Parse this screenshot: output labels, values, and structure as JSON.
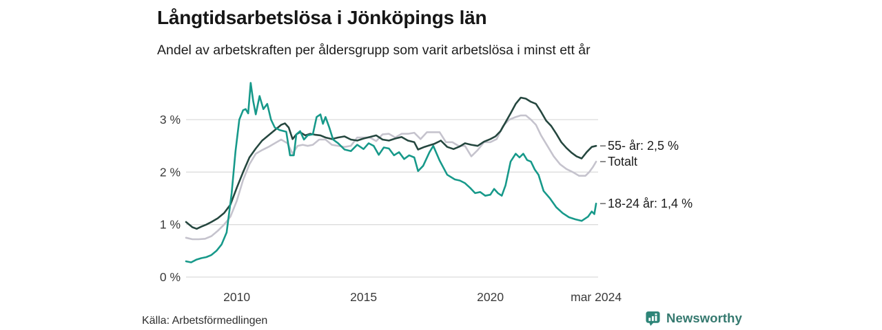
{
  "header": {
    "title": "Långtidsarbetslösa i Jönköpings län",
    "subtitle": "Andel av arbetskraften per åldersgrupp som varit arbetslösa i minst ett år"
  },
  "footer": {
    "source": "Källa: Arbetsförmedlingen",
    "brand": "Newsworthy",
    "brand_color": "#35796f",
    "brand_icon": "bar-chart-badge-icon",
    "brand_icon_color": "#2e8578"
  },
  "chart_data": {
    "type": "line",
    "title": "Långtidsarbetslösa i Jönköpings län",
    "subtitle": "Andel av arbetskraften per åldersgrupp som varit arbetslösa i minst ett år",
    "xlabel": "",
    "ylabel": "",
    "unit": "%",
    "grid": true,
    "legend_position": "end-of-line-labels-right",
    "gridline_color": "#dcdcdc",
    "x_axis": {
      "range": [
        2008.0,
        2024.25
      ],
      "ticks": [
        {
          "t": 2010,
          "label": "2010"
        },
        {
          "t": 2015,
          "label": "2015"
        },
        {
          "t": 2020,
          "label": "2020"
        },
        {
          "t": 2024.17,
          "label": "mar 2024"
        }
      ]
    },
    "y_axis": {
      "range": [
        0,
        3.8
      ],
      "ticks": [
        {
          "v": 0,
          "label": "0 %"
        },
        {
          "v": 1,
          "label": "1 %"
        },
        {
          "v": 2,
          "label": "2 %"
        },
        {
          "v": 3,
          "label": "3 %"
        }
      ]
    },
    "series": [
      {
        "name": "Totalt",
        "end_label": "Totalt",
        "end_value": 2.2,
        "color": "#c5c3cd",
        "x": [
          2008.0,
          2008.25,
          2008.5,
          2008.75,
          2009.0,
          2009.25,
          2009.5,
          2009.75,
          2010.0,
          2010.25,
          2010.5,
          2010.75,
          2011.0,
          2011.25,
          2011.5,
          2011.75,
          2012.0,
          2012.2,
          2012.4,
          2012.6,
          2012.8,
          2013.0,
          2013.25,
          2013.5,
          2013.75,
          2014.0,
          2014.25,
          2014.5,
          2014.75,
          2015.0,
          2015.25,
          2015.5,
          2015.75,
          2016.0,
          2016.25,
          2016.5,
          2016.75,
          2017.0,
          2017.25,
          2017.5,
          2017.75,
          2018.0,
          2018.25,
          2018.5,
          2018.75,
          2019.0,
          2019.25,
          2019.5,
          2019.75,
          2020.0,
          2020.25,
          2020.5,
          2020.75,
          2021.0,
          2021.2,
          2021.4,
          2021.6,
          2021.8,
          2022.0,
          2022.25,
          2022.5,
          2022.75,
          2023.0,
          2023.25,
          2023.5,
          2023.75,
          2023.9,
          2024.05,
          2024.17
        ],
        "values": [
          0.75,
          0.72,
          0.72,
          0.73,
          0.78,
          0.88,
          1.0,
          1.15,
          1.45,
          1.85,
          2.15,
          2.35,
          2.42,
          2.48,
          2.55,
          2.62,
          2.55,
          2.35,
          2.5,
          2.52,
          2.5,
          2.52,
          2.62,
          2.62,
          2.52,
          2.5,
          2.48,
          2.5,
          2.66,
          2.66,
          2.66,
          2.59,
          2.72,
          2.73,
          2.66,
          2.73,
          2.73,
          2.75,
          2.63,
          2.76,
          2.76,
          2.76,
          2.57,
          2.57,
          2.5,
          2.5,
          2.3,
          2.42,
          2.57,
          2.57,
          2.63,
          2.88,
          3.0,
          3.05,
          3.08,
          3.08,
          3.0,
          2.9,
          2.7,
          2.5,
          2.3,
          2.15,
          2.06,
          2.0,
          1.93,
          1.93,
          2.0,
          2.1,
          2.2
        ]
      },
      {
        "name": "55- år",
        "end_label": "55- år: 2,5 %",
        "end_value": 2.5,
        "color": "#25473f",
        "x": [
          2008.0,
          2008.25,
          2008.42,
          2008.6,
          2008.8,
          2009.0,
          2009.25,
          2009.5,
          2009.75,
          2010.0,
          2010.25,
          2010.5,
          2010.75,
          2011.0,
          2011.25,
          2011.5,
          2011.75,
          2011.9,
          2012.05,
          2012.2,
          2012.35,
          2012.5,
          2012.7,
          2012.9,
          2013.1,
          2013.3,
          2013.5,
          2013.75,
          2014.0,
          2014.25,
          2014.5,
          2014.75,
          2015.0,
          2015.25,
          2015.5,
          2015.75,
          2016.0,
          2016.25,
          2016.5,
          2016.75,
          2017.0,
          2017.15,
          2017.4,
          2017.6,
          2017.8,
          2018.05,
          2018.3,
          2018.55,
          2018.8,
          2019.0,
          2019.25,
          2019.5,
          2019.75,
          2020.0,
          2020.2,
          2020.4,
          2020.6,
          2020.8,
          2021.0,
          2021.2,
          2021.4,
          2021.6,
          2021.8,
          2022.0,
          2022.2,
          2022.4,
          2022.6,
          2022.8,
          2023.0,
          2023.2,
          2023.4,
          2023.6,
          2023.8,
          2024.0,
          2024.17
        ],
        "values": [
          1.05,
          0.95,
          0.92,
          0.96,
          1.0,
          1.05,
          1.12,
          1.22,
          1.38,
          1.7,
          2.0,
          2.28,
          2.45,
          2.6,
          2.7,
          2.8,
          2.9,
          2.93,
          2.85,
          2.63,
          2.72,
          2.76,
          2.7,
          2.73,
          2.71,
          2.7,
          2.66,
          2.63,
          2.66,
          2.68,
          2.62,
          2.6,
          2.64,
          2.67,
          2.7,
          2.62,
          2.6,
          2.64,
          2.67,
          2.6,
          2.57,
          2.43,
          2.48,
          2.51,
          2.54,
          2.6,
          2.48,
          2.44,
          2.49,
          2.55,
          2.52,
          2.5,
          2.58,
          2.63,
          2.68,
          2.78,
          2.95,
          3.12,
          3.3,
          3.42,
          3.4,
          3.34,
          3.3,
          3.15,
          2.98,
          2.88,
          2.73,
          2.57,
          2.46,
          2.37,
          2.3,
          2.26,
          2.38,
          2.48,
          2.5
        ]
      },
      {
        "name": "18-24 år",
        "end_label": "18-24 år: 1,4 %",
        "end_value": 1.4,
        "color": "#17998a",
        "x": [
          2008.0,
          2008.2,
          2008.4,
          2008.6,
          2008.8,
          2009.0,
          2009.2,
          2009.4,
          2009.6,
          2009.8,
          2009.95,
          2010.1,
          2010.25,
          2010.35,
          2010.45,
          2010.55,
          2010.65,
          2010.75,
          2010.9,
          2011.05,
          2011.2,
          2011.35,
          2011.5,
          2011.7,
          2011.95,
          2012.1,
          2012.25,
          2012.35,
          2012.5,
          2012.65,
          2012.8,
          2013.0,
          2013.15,
          2013.3,
          2013.4,
          2013.5,
          2013.65,
          2013.8,
          2014.0,
          2014.25,
          2014.5,
          2014.75,
          2015.0,
          2015.2,
          2015.4,
          2015.6,
          2015.8,
          2016.0,
          2016.2,
          2016.4,
          2016.6,
          2016.8,
          2017.0,
          2017.15,
          2017.35,
          2017.6,
          2017.75,
          2018.0,
          2018.3,
          2018.6,
          2018.8,
          2019.0,
          2019.2,
          2019.4,
          2019.6,
          2019.8,
          2020.0,
          2020.15,
          2020.3,
          2020.45,
          2020.6,
          2020.8,
          2021.0,
          2021.15,
          2021.3,
          2021.45,
          2021.6,
          2021.75,
          2021.9,
          2022.1,
          2022.35,
          2022.6,
          2022.85,
          2023.1,
          2023.35,
          2023.6,
          2023.85,
          2024.0,
          2024.1,
          2024.17
        ],
        "values": [
          0.3,
          0.28,
          0.33,
          0.36,
          0.38,
          0.42,
          0.5,
          0.62,
          0.85,
          1.6,
          2.4,
          3.0,
          3.18,
          3.2,
          3.12,
          3.7,
          3.35,
          3.1,
          3.45,
          3.2,
          3.3,
          3.0,
          2.85,
          2.8,
          2.77,
          2.32,
          2.32,
          2.72,
          2.78,
          2.62,
          2.7,
          2.72,
          3.05,
          3.1,
          2.92,
          3.05,
          2.85,
          2.62,
          2.55,
          2.43,
          2.4,
          2.52,
          2.44,
          2.55,
          2.5,
          2.33,
          2.47,
          2.45,
          2.32,
          2.38,
          2.25,
          2.32,
          2.28,
          2.02,
          2.12,
          2.38,
          2.5,
          2.22,
          1.95,
          1.86,
          1.84,
          1.79,
          1.7,
          1.6,
          1.62,
          1.55,
          1.57,
          1.68,
          1.6,
          1.55,
          1.75,
          2.2,
          2.35,
          2.28,
          2.35,
          2.23,
          2.2,
          2.05,
          1.95,
          1.64,
          1.5,
          1.33,
          1.22,
          1.14,
          1.1,
          1.07,
          1.15,
          1.25,
          1.2,
          1.4
        ]
      }
    ]
  }
}
